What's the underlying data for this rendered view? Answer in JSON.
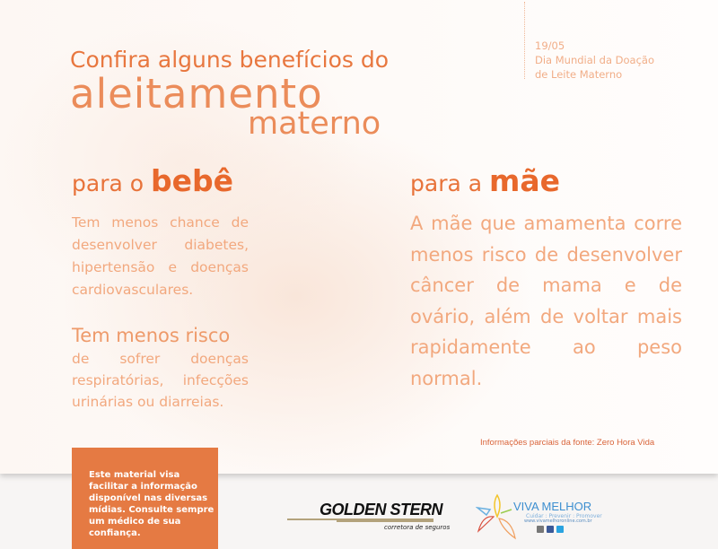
{
  "header": {
    "date": "19/05",
    "event_line1": "Dia Mundial da Doação",
    "event_line2": "de Leite Materno"
  },
  "title": {
    "line1": "Confira alguns benefícios do",
    "line2": "aleitamento",
    "line3": "materno"
  },
  "bebe": {
    "heading_prefix": "para o",
    "heading_emph": "bebê",
    "text1": "Tem menos chance de desenvolver diabetes, hipertensão e doenças cardiovasculares.",
    "text2_lead": "Tem menos risco",
    "text2_rest": "de sofrer doenças respiratórias, infecções urinárias ou diarreias."
  },
  "mae": {
    "heading_prefix": "para a",
    "heading_emph": "mãe",
    "text": "A mãe que amamenta corre menos risco de desenvolver câncer de mama e de ovário, além de voltar mais rapidamente ao peso normal."
  },
  "source": "Informações parciais da fonte: Zero Hora Vida",
  "disclaimer": "Este material visa facilitar a informação disponível nas diversas mídias. Consulte sempre um médico de sua confiança.",
  "logos": {
    "golden_stern": "GOLDEN STERN",
    "golden_stern_sub": "corretora de seguros",
    "viva_melhor": "VIVA MELHOR",
    "viva_tagline": "Cuidar : Prevenir : Promover",
    "viva_url": "www.vivamelhoronline.com.br"
  },
  "colors": {
    "accent": "#e8733a",
    "body": "#f2a87e",
    "box": "#e57a43"
  }
}
